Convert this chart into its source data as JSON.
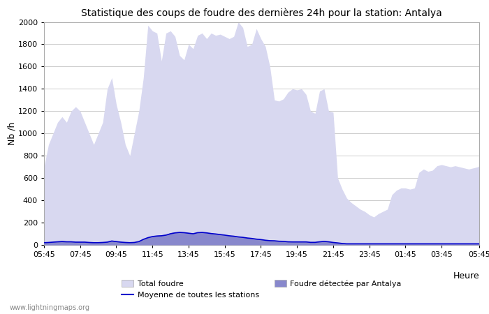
{
  "title": "Statistique des coups de foudre des dernières 24h pour la station: Antalya",
  "xlabel": "Heure",
  "ylabel": "Nb /h",
  "watermark": "www.lightningmaps.org",
  "ylim": [
    0,
    2000
  ],
  "yticks": [
    0,
    200,
    400,
    600,
    800,
    1000,
    1200,
    1400,
    1600,
    1800,
    2000
  ],
  "xtick_labels": [
    "05:45",
    "07:45",
    "09:45",
    "11:45",
    "13:45",
    "15:45",
    "17:45",
    "19:45",
    "21:45",
    "23:45",
    "01:45",
    "03:45",
    "05:45"
  ],
  "color_total": "#d8d8f0",
  "color_detected": "#8888cc",
  "color_mean": "#0000cc",
  "background_color": "#ffffff",
  "grid_color": "#cccccc",
  "time_hours": [
    5.75,
    6.0,
    6.25,
    6.5,
    6.75,
    7.0,
    7.25,
    7.5,
    7.75,
    8.0,
    8.25,
    8.5,
    8.75,
    9.0,
    9.25,
    9.5,
    9.75,
    10.0,
    10.25,
    10.5,
    10.75,
    11.0,
    11.25,
    11.5,
    11.75,
    12.0,
    12.25,
    12.5,
    12.75,
    13.0,
    13.25,
    13.5,
    13.75,
    14.0,
    14.25,
    14.5,
    14.75,
    15.0,
    15.25,
    15.5,
    15.75,
    16.0,
    16.25,
    16.5,
    16.75,
    17.0,
    17.25,
    17.5,
    17.75,
    18.0,
    18.25,
    18.5,
    18.75,
    19.0,
    19.25,
    19.5,
    19.75,
    20.0,
    20.25,
    20.5,
    20.75,
    21.0,
    21.25,
    21.5,
    21.75,
    22.0,
    22.25,
    22.5,
    22.75,
    23.0,
    23.25,
    23.5,
    23.75,
    24.0,
    24.25,
    24.5,
    24.75,
    25.0,
    25.25,
    25.5,
    25.75,
    26.0,
    26.25,
    26.5,
    26.75,
    27.0,
    27.25,
    27.5,
    27.75,
    28.0,
    28.25,
    28.5,
    28.75,
    29.0,
    29.25,
    29.5,
    29.75,
    29.833
  ],
  "total_foudre": [
    700,
    900,
    1000,
    1100,
    1150,
    1100,
    1200,
    1240,
    1200,
    1100,
    1000,
    900,
    1000,
    1100,
    1400,
    1500,
    1260,
    1100,
    900,
    800,
    1000,
    1200,
    1500,
    1970,
    1920,
    1900,
    1650,
    1900,
    1920,
    1870,
    1700,
    1660,
    1800,
    1760,
    1880,
    1900,
    1850,
    1900,
    1880,
    1890,
    1870,
    1850,
    1870,
    2000,
    1950,
    1780,
    1800,
    1940,
    1850,
    1780,
    1600,
    1300,
    1290,
    1310,
    1370,
    1400,
    1390,
    1400,
    1350,
    1200,
    1180,
    1380,
    1400,
    1200,
    1190,
    600,
    500,
    420,
    380,
    350,
    320,
    300,
    270,
    250,
    280,
    300,
    320,
    450,
    490,
    510,
    510,
    500,
    510,
    650,
    680,
    660,
    670,
    710,
    720,
    710,
    700,
    710,
    700,
    690,
    680,
    690,
    700,
    710
  ],
  "detected_antalya": [
    20,
    25,
    30,
    35,
    40,
    35,
    35,
    30,
    30,
    30,
    25,
    20,
    20,
    25,
    30,
    40,
    35,
    30,
    25,
    20,
    25,
    35,
    55,
    70,
    80,
    85,
    90,
    95,
    110,
    115,
    120,
    115,
    110,
    105,
    115,
    115,
    110,
    105,
    100,
    95,
    90,
    85,
    80,
    75,
    70,
    65,
    60,
    55,
    50,
    45,
    40,
    40,
    35,
    35,
    30,
    30,
    30,
    30,
    30,
    25,
    25,
    30,
    35,
    30,
    25,
    20,
    15,
    10,
    10,
    10,
    10,
    10,
    10,
    10,
    10,
    10,
    10,
    10,
    10,
    10,
    10,
    10,
    10,
    10,
    10,
    10,
    10,
    10,
    10,
    10,
    10,
    10,
    10,
    10,
    10,
    10,
    10,
    10
  ],
  "mean_line": [
    20,
    22,
    25,
    28,
    30,
    28,
    28,
    25,
    25,
    25,
    22,
    20,
    20,
    22,
    25,
    35,
    30,
    25,
    22,
    20,
    22,
    30,
    50,
    65,
    75,
    80,
    82,
    88,
    100,
    108,
    112,
    110,
    105,
    100,
    110,
    112,
    108,
    102,
    98,
    93,
    88,
    82,
    78,
    72,
    68,
    62,
    58,
    52,
    48,
    42,
    38,
    37,
    33,
    32,
    28,
    27,
    27,
    27,
    27,
    23,
    23,
    28,
    32,
    28,
    22,
    18,
    13,
    10,
    10,
    10,
    10,
    10,
    10,
    10,
    10,
    10,
    10,
    10,
    10,
    10,
    10,
    10,
    10,
    10,
    10,
    10,
    10,
    10,
    10,
    10,
    10,
    10,
    10,
    10,
    10,
    10,
    10,
    10
  ],
  "legend_total": "Total foudre",
  "legend_detected": "Foudre détectée par Antalya",
  "legend_mean": "Moyenne de toutes les stations",
  "title_fontsize": 10,
  "axis_fontsize": 9,
  "tick_fontsize": 8,
  "legend_fontsize": 8
}
